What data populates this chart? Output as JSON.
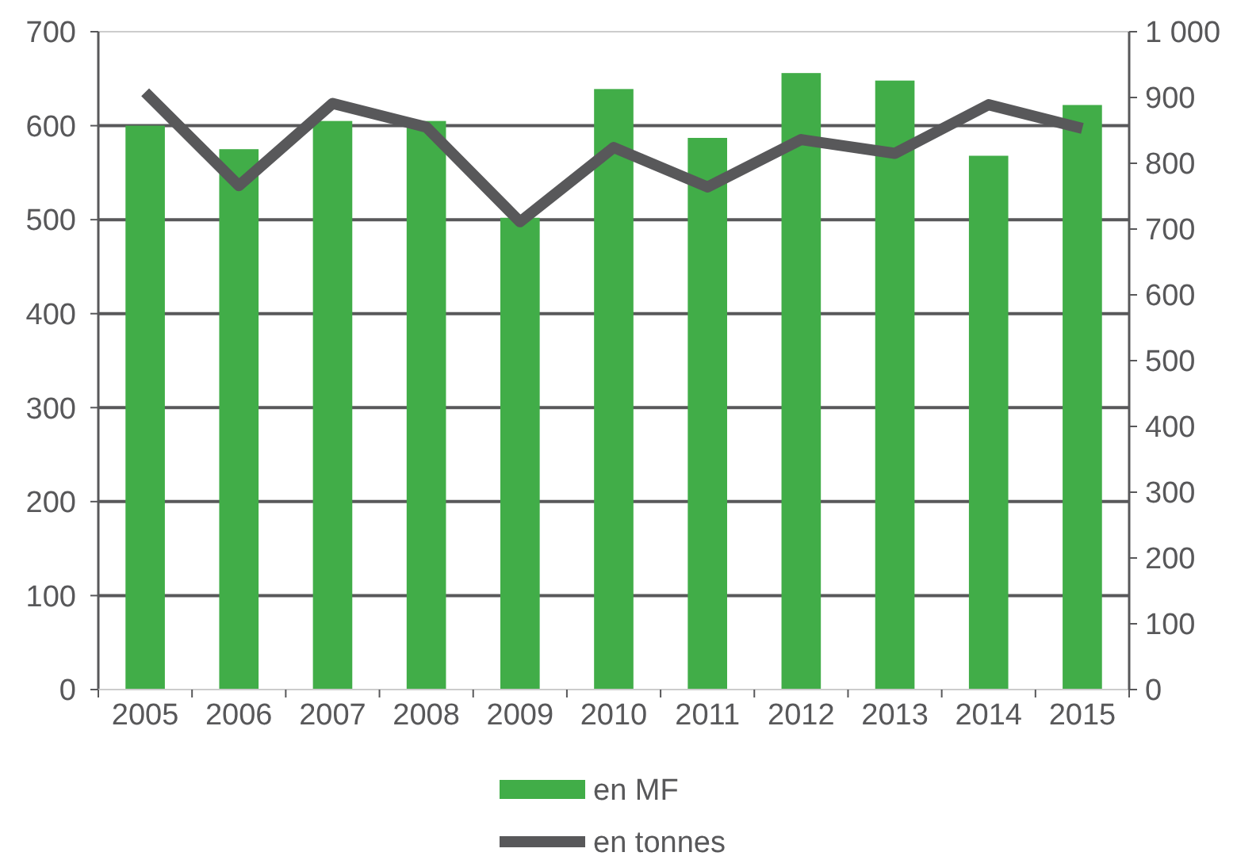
{
  "chart_data": {
    "type": "bar",
    "categories": [
      "2005",
      "2006",
      "2007",
      "2008",
      "2009",
      "2010",
      "2011",
      "2012",
      "2013",
      "2014",
      "2015"
    ],
    "series": [
      {
        "name": "en MF",
        "color": "#41ad48",
        "values": [
          600,
          575,
          605,
          605,
          502,
          639,
          587,
          656,
          648,
          568,
          622
        ]
      },
      {
        "name": "en tonnes",
        "type": "line",
        "axis": "y2",
        "color": "#58585a",
        "values": [
          908,
          766,
          891,
          855,
          711,
          824,
          764,
          836,
          815,
          889,
          853
        ]
      }
    ],
    "ylim": [
      0,
      700
    ],
    "yticks": [
      0,
      100,
      200,
      300,
      400,
      500,
      600,
      700
    ],
    "y2lim": [
      0,
      1000
    ],
    "y2ticks": [
      0,
      100,
      200,
      300,
      400,
      500,
      600,
      700,
      800,
      900,
      {
        "value": 1000,
        "label": "1 000"
      }
    ],
    "grid": "y",
    "legend": "bottom"
  }
}
